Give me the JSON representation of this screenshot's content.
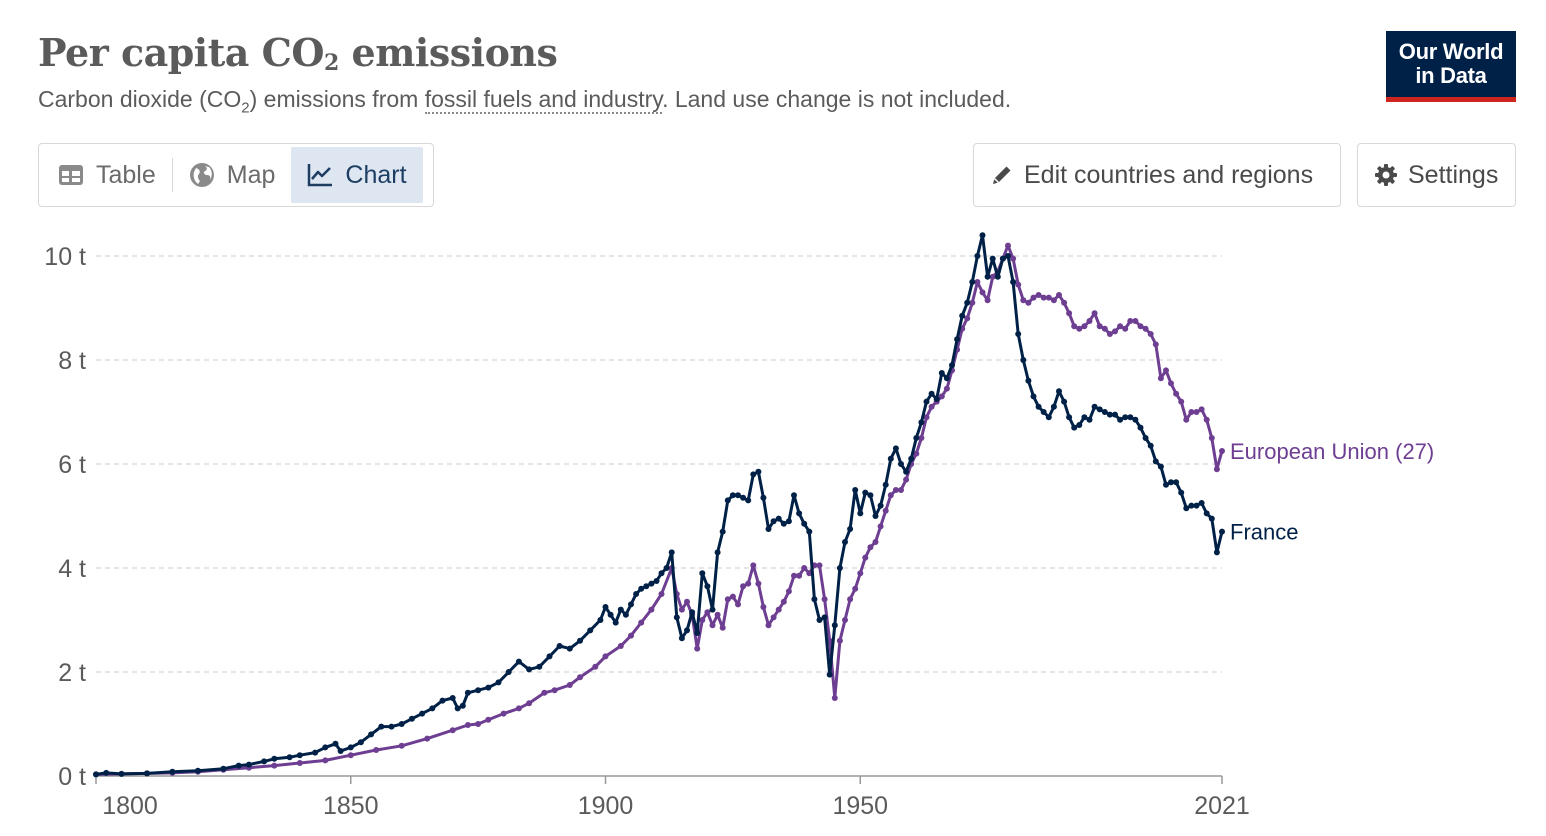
{
  "title_main": "Per capita CO",
  "title_sub": "2",
  "title_rest": " emissions",
  "subtitle_pre": "Carbon dioxide (CO",
  "subtitle_sub": "2",
  "subtitle_mid": ") emissions from ",
  "subtitle_link": "fossil fuels and industry",
  "subtitle_post": ". Land use change is not included.",
  "logo_line1": "Our World",
  "logo_line2": "in Data",
  "tabs": {
    "table": "Table",
    "map": "Map",
    "chart": "Chart"
  },
  "buttons": {
    "edit": "Edit countries and regions",
    "settings": "Settings"
  },
  "colors": {
    "france": "#002147",
    "eu": "#6d3e91",
    "grid": "#dddddd",
    "axis": "#999999"
  },
  "chart_data": {
    "type": "line",
    "xlim": [
      1800,
      2021
    ],
    "ylim": [
      0,
      10
    ],
    "y_ticks": [
      0,
      2,
      4,
      6,
      8,
      10
    ],
    "y_tick_labels": [
      "0 t",
      "2 t",
      "4 t",
      "6 t",
      "8 t",
      "10 t"
    ],
    "x_ticks": [
      1800,
      1850,
      1900,
      1950,
      2021
    ],
    "x_tick_labels": [
      "1800",
      "1850",
      "1900",
      "1950",
      "2021"
    ],
    "grid": true,
    "series": [
      {
        "name": "European Union (27)",
        "key": "eu",
        "points": [
          [
            1800,
            0.03
          ],
          [
            1805,
            0.04
          ],
          [
            1810,
            0.05
          ],
          [
            1815,
            0.06
          ],
          [
            1820,
            0.08
          ],
          [
            1825,
            0.12
          ],
          [
            1830,
            0.16
          ],
          [
            1835,
            0.2
          ],
          [
            1840,
            0.25
          ],
          [
            1845,
            0.3
          ],
          [
            1850,
            0.4
          ],
          [
            1855,
            0.5
          ],
          [
            1860,
            0.58
          ],
          [
            1865,
            0.72
          ],
          [
            1870,
            0.88
          ],
          [
            1873,
            0.98
          ],
          [
            1875,
            1.0
          ],
          [
            1877,
            1.08
          ],
          [
            1880,
            1.2
          ],
          [
            1883,
            1.3
          ],
          [
            1885,
            1.4
          ],
          [
            1888,
            1.6
          ],
          [
            1890,
            1.65
          ],
          [
            1893,
            1.75
          ],
          [
            1895,
            1.9
          ],
          [
            1898,
            2.1
          ],
          [
            1900,
            2.3
          ],
          [
            1903,
            2.5
          ],
          [
            1905,
            2.7
          ],
          [
            1907,
            2.95
          ],
          [
            1909,
            3.2
          ],
          [
            1911,
            3.5
          ],
          [
            1913,
            4.0
          ],
          [
            1914,
            3.5
          ],
          [
            1915,
            3.2
          ],
          [
            1916,
            3.35
          ],
          [
            1917,
            3.1
          ],
          [
            1918,
            2.45
          ],
          [
            1919,
            3.0
          ],
          [
            1920,
            3.15
          ],
          [
            1921,
            2.9
          ],
          [
            1922,
            3.1
          ],
          [
            1923,
            2.85
          ],
          [
            1924,
            3.4
          ],
          [
            1925,
            3.45
          ],
          [
            1926,
            3.3
          ],
          [
            1927,
            3.65
          ],
          [
            1928,
            3.7
          ],
          [
            1929,
            4.05
          ],
          [
            1930,
            3.7
          ],
          [
            1931,
            3.25
          ],
          [
            1932,
            2.9
          ],
          [
            1933,
            3.05
          ],
          [
            1934,
            3.2
          ],
          [
            1935,
            3.35
          ],
          [
            1936,
            3.55
          ],
          [
            1937,
            3.85
          ],
          [
            1938,
            3.85
          ],
          [
            1939,
            4.0
          ],
          [
            1940,
            3.9
          ],
          [
            1941,
            4.05
          ],
          [
            1942,
            4.05
          ],
          [
            1943,
            3.4
          ],
          [
            1944,
            2.6
          ],
          [
            1945,
            1.5
          ],
          [
            1946,
            2.6
          ],
          [
            1947,
            3.0
          ],
          [
            1948,
            3.4
          ],
          [
            1949,
            3.6
          ],
          [
            1950,
            3.9
          ],
          [
            1951,
            4.2
          ],
          [
            1952,
            4.4
          ],
          [
            1953,
            4.5
          ],
          [
            1954,
            4.8
          ],
          [
            1955,
            5.1
          ],
          [
            1956,
            5.4
          ],
          [
            1957,
            5.5
          ],
          [
            1958,
            5.5
          ],
          [
            1959,
            5.7
          ],
          [
            1960,
            6.0
          ],
          [
            1961,
            6.2
          ],
          [
            1962,
            6.5
          ],
          [
            1963,
            6.9
          ],
          [
            1964,
            7.1
          ],
          [
            1965,
            7.2
          ],
          [
            1966,
            7.3
          ],
          [
            1967,
            7.45
          ],
          [
            1968,
            7.8
          ],
          [
            1969,
            8.2
          ],
          [
            1970,
            8.6
          ],
          [
            1971,
            8.8
          ],
          [
            1972,
            9.1
          ],
          [
            1973,
            9.5
          ],
          [
            1974,
            9.3
          ],
          [
            1975,
            9.15
          ],
          [
            1976,
            9.6
          ],
          [
            1977,
            9.7
          ],
          [
            1978,
            9.95
          ],
          [
            1979,
            10.2
          ],
          [
            1980,
            9.95
          ],
          [
            1981,
            9.45
          ],
          [
            1982,
            9.15
          ],
          [
            1983,
            9.1
          ],
          [
            1984,
            9.2
          ],
          [
            1985,
            9.25
          ],
          [
            1986,
            9.2
          ],
          [
            1987,
            9.2
          ],
          [
            1988,
            9.15
          ],
          [
            1989,
            9.25
          ],
          [
            1990,
            9.1
          ],
          [
            1991,
            8.9
          ],
          [
            1992,
            8.65
          ],
          [
            1993,
            8.6
          ],
          [
            1994,
            8.65
          ],
          [
            1995,
            8.75
          ],
          [
            1996,
            8.9
          ],
          [
            1997,
            8.65
          ],
          [
            1998,
            8.6
          ],
          [
            1999,
            8.5
          ],
          [
            2000,
            8.55
          ],
          [
            2001,
            8.65
          ],
          [
            2002,
            8.6
          ],
          [
            2003,
            8.75
          ],
          [
            2004,
            8.75
          ],
          [
            2005,
            8.65
          ],
          [
            2006,
            8.6
          ],
          [
            2007,
            8.5
          ],
          [
            2008,
            8.3
          ],
          [
            2009,
            7.65
          ],
          [
            2010,
            7.8
          ],
          [
            2011,
            7.55
          ],
          [
            2012,
            7.35
          ],
          [
            2013,
            7.2
          ],
          [
            2014,
            6.85
          ],
          [
            2015,
            7.0
          ],
          [
            2016,
            7.0
          ],
          [
            2017,
            7.05
          ],
          [
            2018,
            6.85
          ],
          [
            2019,
            6.5
          ],
          [
            2020,
            5.9
          ],
          [
            2021,
            6.25
          ]
        ]
      },
      {
        "name": "France",
        "key": "france",
        "points": [
          [
            1800,
            0.03
          ],
          [
            1802,
            0.06
          ],
          [
            1805,
            0.04
          ],
          [
            1810,
            0.05
          ],
          [
            1815,
            0.08
          ],
          [
            1820,
            0.1
          ],
          [
            1825,
            0.14
          ],
          [
            1828,
            0.2
          ],
          [
            1830,
            0.22
          ],
          [
            1833,
            0.28
          ],
          [
            1835,
            0.33
          ],
          [
            1838,
            0.36
          ],
          [
            1840,
            0.4
          ],
          [
            1843,
            0.45
          ],
          [
            1845,
            0.55
          ],
          [
            1847,
            0.62
          ],
          [
            1848,
            0.48
          ],
          [
            1850,
            0.55
          ],
          [
            1852,
            0.65
          ],
          [
            1854,
            0.8
          ],
          [
            1856,
            0.95
          ],
          [
            1858,
            0.95
          ],
          [
            1860,
            1.0
          ],
          [
            1862,
            1.1
          ],
          [
            1864,
            1.2
          ],
          [
            1866,
            1.3
          ],
          [
            1868,
            1.45
          ],
          [
            1870,
            1.5
          ],
          [
            1871,
            1.3
          ],
          [
            1872,
            1.35
          ],
          [
            1873,
            1.6
          ],
          [
            1875,
            1.65
          ],
          [
            1877,
            1.7
          ],
          [
            1879,
            1.8
          ],
          [
            1881,
            2.0
          ],
          [
            1883,
            2.2
          ],
          [
            1885,
            2.05
          ],
          [
            1887,
            2.1
          ],
          [
            1889,
            2.3
          ],
          [
            1891,
            2.5
          ],
          [
            1893,
            2.45
          ],
          [
            1895,
            2.6
          ],
          [
            1897,
            2.8
          ],
          [
            1899,
            3.0
          ],
          [
            1900,
            3.25
          ],
          [
            1901,
            3.1
          ],
          [
            1902,
            2.95
          ],
          [
            1903,
            3.2
          ],
          [
            1904,
            3.1
          ],
          [
            1905,
            3.3
          ],
          [
            1906,
            3.5
          ],
          [
            1907,
            3.6
          ],
          [
            1908,
            3.65
          ],
          [
            1909,
            3.7
          ],
          [
            1910,
            3.75
          ],
          [
            1911,
            3.9
          ],
          [
            1912,
            4.0
          ],
          [
            1913,
            4.3
          ],
          [
            1914,
            3.05
          ],
          [
            1915,
            2.65
          ],
          [
            1916,
            2.8
          ],
          [
            1917,
            3.15
          ],
          [
            1918,
            2.75
          ],
          [
            1919,
            3.9
          ],
          [
            1920,
            3.65
          ],
          [
            1921,
            3.2
          ],
          [
            1922,
            4.3
          ],
          [
            1923,
            4.7
          ],
          [
            1924,
            5.3
          ],
          [
            1925,
            5.4
          ],
          [
            1926,
            5.4
          ],
          [
            1927,
            5.35
          ],
          [
            1928,
            5.3
          ],
          [
            1929,
            5.8
          ],
          [
            1930,
            5.85
          ],
          [
            1931,
            5.35
          ],
          [
            1932,
            4.75
          ],
          [
            1933,
            4.9
          ],
          [
            1934,
            4.95
          ],
          [
            1935,
            4.85
          ],
          [
            1936,
            4.9
          ],
          [
            1937,
            5.4
          ],
          [
            1938,
            5.05
          ],
          [
            1939,
            4.85
          ],
          [
            1940,
            4.7
          ],
          [
            1941,
            3.4
          ],
          [
            1942,
            3.0
          ],
          [
            1943,
            3.05
          ],
          [
            1944,
            1.95
          ],
          [
            1945,
            2.9
          ],
          [
            1946,
            4.0
          ],
          [
            1947,
            4.5
          ],
          [
            1948,
            4.75
          ],
          [
            1949,
            5.5
          ],
          [
            1950,
            5.05
          ],
          [
            1951,
            5.45
          ],
          [
            1952,
            5.4
          ],
          [
            1953,
            5.0
          ],
          [
            1954,
            5.2
          ],
          [
            1955,
            5.6
          ],
          [
            1956,
            6.1
          ],
          [
            1957,
            6.3
          ],
          [
            1958,
            6.0
          ],
          [
            1959,
            5.85
          ],
          [
            1960,
            6.1
          ],
          [
            1961,
            6.5
          ],
          [
            1962,
            6.8
          ],
          [
            1963,
            7.2
          ],
          [
            1964,
            7.35
          ],
          [
            1965,
            7.25
          ],
          [
            1966,
            7.75
          ],
          [
            1967,
            7.65
          ],
          [
            1968,
            7.9
          ],
          [
            1969,
            8.4
          ],
          [
            1970,
            8.85
          ],
          [
            1971,
            9.1
          ],
          [
            1972,
            9.5
          ],
          [
            1973,
            10.0
          ],
          [
            1974,
            10.4
          ],
          [
            1975,
            9.6
          ],
          [
            1976,
            9.95
          ],
          [
            1977,
            9.6
          ],
          [
            1978,
            9.95
          ],
          [
            1979,
            10.0
          ],
          [
            1980,
            9.5
          ],
          [
            1981,
            8.5
          ],
          [
            1982,
            8.0
          ],
          [
            1983,
            7.6
          ],
          [
            1984,
            7.3
          ],
          [
            1985,
            7.1
          ],
          [
            1986,
            7.0
          ],
          [
            1987,
            6.9
          ],
          [
            1988,
            7.1
          ],
          [
            1989,
            7.4
          ],
          [
            1990,
            7.2
          ],
          [
            1991,
            6.9
          ],
          [
            1992,
            6.7
          ],
          [
            1993,
            6.75
          ],
          [
            1994,
            6.9
          ],
          [
            1995,
            6.85
          ],
          [
            1996,
            7.1
          ],
          [
            1997,
            7.05
          ],
          [
            1998,
            7.0
          ],
          [
            1999,
            6.95
          ],
          [
            2000,
            6.95
          ],
          [
            2001,
            6.85
          ],
          [
            2002,
            6.9
          ],
          [
            2003,
            6.9
          ],
          [
            2004,
            6.85
          ],
          [
            2005,
            6.7
          ],
          [
            2006,
            6.5
          ],
          [
            2007,
            6.35
          ],
          [
            2008,
            6.05
          ],
          [
            2009,
            5.95
          ],
          [
            2010,
            5.6
          ],
          [
            2011,
            5.65
          ],
          [
            2012,
            5.65
          ],
          [
            2013,
            5.45
          ],
          [
            2014,
            5.15
          ],
          [
            2015,
            5.2
          ],
          [
            2016,
            5.2
          ],
          [
            2017,
            5.25
          ],
          [
            2018,
            5.05
          ],
          [
            2019,
            4.95
          ],
          [
            2020,
            4.3
          ],
          [
            2021,
            4.7
          ]
        ]
      }
    ]
  }
}
